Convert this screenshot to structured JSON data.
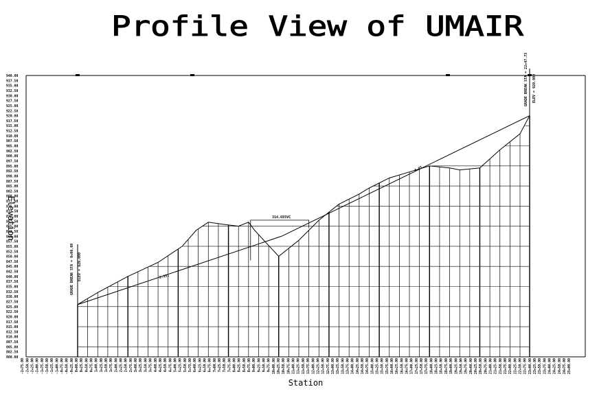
{
  "title": "Profile View of  UMAIR",
  "ylabel": "Elevation",
  "xlabel": "Station",
  "y_ticks": [
    "940.00",
    "937.50",
    "935.00",
    "932.50",
    "930.00",
    "927.50",
    "925.00",
    "922.50",
    "920.00",
    "917.50",
    "915.00",
    "912.50",
    "910.00",
    "907.50",
    "905.00",
    "902.50",
    "900.00",
    "897.50",
    "895.00",
    "892.50",
    "890.00",
    "887.50",
    "885.00",
    "882.50",
    "880.00",
    "877.50",
    "875.00",
    "872.50",
    "870.00",
    "867.50",
    "865.00",
    "862.50",
    "860.00",
    "857.50",
    "855.00",
    "852.50",
    "850.00",
    "847.50",
    "845.00",
    "842.50",
    "840.00",
    "837.50",
    "835.00",
    "832.50",
    "830.00",
    "827.50",
    "825.00",
    "822.50",
    "820.00",
    "817.50",
    "815.00",
    "812.50",
    "810.00",
    "807.50",
    "805.00",
    "802.50",
    "800.00"
  ],
  "x_ticks": [
    "-2+75.00",
    "-2+50.00",
    "-2+25.00",
    "-2+00.00",
    "-1+75.00",
    "-1+50.00",
    "-1+25.00",
    "-1+00.00",
    "-0+75.00",
    "-0+50.00",
    "-0+25.00",
    "0+00.00",
    "0+25.00",
    "0+50.00",
    "0+75.00",
    "1+00.00",
    "1+25.00",
    "1+50.00",
    "1+75.00",
    "2+00.00",
    "2+25.00",
    "2+50.00",
    "2+75.00",
    "3+00.00",
    "3+25.00",
    "3+50.00",
    "3+75.00",
    "4+00.00",
    "4+25.00",
    "4+50.00",
    "4+75.00",
    "5+00.00",
    "5+25.00",
    "5+50.00",
    "5+75.00",
    "6+00.00",
    "6+25.00",
    "6+50.00",
    "6+75.00",
    "7+00.00",
    "7+25.00",
    "7+50.00",
    "7+75.00",
    "8+00.00",
    "8+25.00",
    "8+50.00",
    "8+75.00",
    "9+00.00",
    "9+25.00",
    "9+50.00",
    "9+75.00",
    "10+00.00",
    "10+25.00",
    "10+50.00",
    "10+75.00",
    "11+00.00",
    "11+25.00",
    "11+50.00",
    "11+75.00",
    "12+00.00",
    "12+25.00",
    "12+50.00",
    "12+75.00",
    "13+00.00",
    "13+25.00",
    "13+50.00",
    "13+75.00",
    "14+00.00",
    "14+25.00",
    "14+50.00",
    "14+75.00",
    "15+00.00",
    "15+25.00",
    "15+50.00",
    "15+75.00",
    "16+00.00",
    "16+25.00",
    "16+50.00",
    "16+75.00",
    "17+00.00",
    "17+25.00",
    "17+50.00",
    "17+75.00",
    "18+00.00",
    "18+25.00",
    "18+50.00",
    "18+75.00",
    "19+00.00",
    "19+25.00",
    "19+50.00",
    "19+75.00",
    "20+00.00",
    "20+25.00",
    "20+50.00",
    "20+75.00",
    "21+00.00",
    "21+25.00",
    "21+50.00",
    "21+75.00",
    "22+00.00",
    "22+25.00",
    "22+50.00",
    "22+75.00",
    "23+00.00",
    "23+25.00",
    "23+50.00",
    "23+75.00",
    "24+00.00",
    "24+25.00",
    "24+50.00",
    "24+75.00",
    "25+00.00"
  ],
  "chart_data": {
    "type": "line",
    "title": "Profile View of  UMAIR",
    "xlabel": "Station",
    "ylabel": "Elevation",
    "ylim": [
      800,
      940
    ],
    "xlim": [
      -275,
      2500
    ],
    "grid": true,
    "series": [
      {
        "x": [
          0,
          100,
          250,
          400,
          520,
          590,
          650,
          720,
          800,
          850,
          880,
          935,
          1000,
          1100,
          1200,
          1300,
          1400,
          1450,
          1550,
          1650,
          1750,
          1850,
          1900,
          2000,
          2100,
          2200,
          2247.73
        ],
        "y": [
          826,
          832,
          840,
          847,
          855,
          863,
          867,
          866,
          865,
          867,
          863,
          857,
          850,
          858,
          868,
          876,
          881,
          884,
          889,
          892,
          895,
          894,
          893,
          894,
          903,
          911,
          920
        ]
      },
      {
        "x": [
          0,
          1014,
          2247.73
        ],
        "y": [
          826,
          860,
          920
        ]
      }
    ],
    "annotations": [
      {
        "text": "GRADE BREAK STA = 0+00.00",
        "x": 0,
        "y": 826
      },
      {
        "text": "ELEV = 826.000",
        "x": 0,
        "y": 826
      },
      {
        "text": "GRADE BREAK STA = 22+47.73",
        "x": 2247.73,
        "y": 920
      },
      {
        "text": "ELEV = 920.000",
        "x": 2247.73,
        "y": 920
      },
      {
        "text": "314.693VC",
        "x": 1014,
        "y": 860
      },
      {
        "text": "3.351",
        "x": 400,
        "y": 840
      },
      {
        "text": "4.85",
        "x": 1650,
        "y": 893
      }
    ]
  }
}
